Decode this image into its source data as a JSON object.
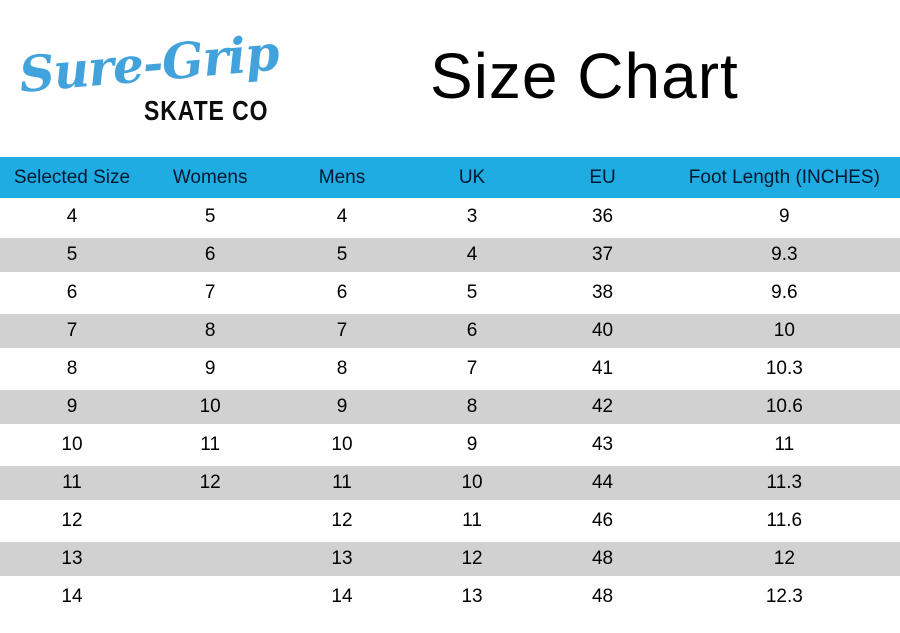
{
  "logo": {
    "script": "Sure-Grip",
    "subtitle": "SKATE CO"
  },
  "title": "Size Chart",
  "colors": {
    "header_bg": "#1FACE3",
    "alt_row_bg": "#D1D1D1",
    "logo_blue": "#42A3DC",
    "header_text": "#02182e",
    "body_text": "#000000"
  },
  "chart_data": {
    "type": "table",
    "title": "Size Chart",
    "columns": [
      "Selected Size",
      "Womens",
      "Mens",
      "UK",
      "EU",
      "Foot Length (INCHES)"
    ],
    "rows": [
      [
        "4",
        "5",
        "4",
        "3",
        "36",
        "9"
      ],
      [
        "5",
        "6",
        "5",
        "4",
        "37",
        "9.3"
      ],
      [
        "6",
        "7",
        "6",
        "5",
        "38",
        "9.6"
      ],
      [
        "7",
        "8",
        "7",
        "6",
        "40",
        "10"
      ],
      [
        "8",
        "9",
        "8",
        "7",
        "41",
        "10.3"
      ],
      [
        "9",
        "10",
        "9",
        "8",
        "42",
        "10.6"
      ],
      [
        "10",
        "11",
        "10",
        "9",
        "43",
        "11"
      ],
      [
        "11",
        "12",
        "11",
        "10",
        "44",
        "11.3"
      ],
      [
        "12",
        "",
        "12",
        "11",
        "46",
        "11.6"
      ],
      [
        "13",
        "",
        "13",
        "12",
        "48",
        "12"
      ],
      [
        "14",
        "",
        "14",
        "13",
        "48",
        "12.3"
      ]
    ],
    "layout": {
      "alternating_row_shading": true,
      "shaded_rows": "even (2nd, 4th, ...)",
      "column_alignment": "center"
    }
  }
}
